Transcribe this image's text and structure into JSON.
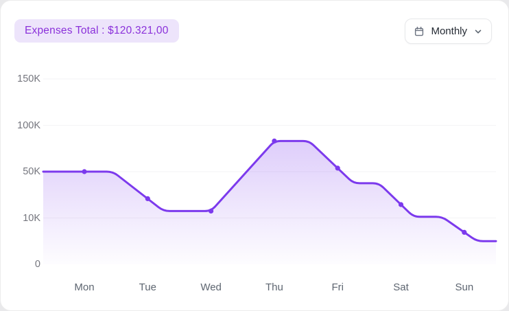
{
  "header": {
    "expenses_badge": "Expenses Total : $120.321,00",
    "period_dropdown": {
      "value": "Monthly",
      "icons": [
        "calendar-icon",
        "chevron-down-icon"
      ]
    }
  },
  "theme": {
    "accent": "#7C3AED",
    "badge_bg": "#EDE4FB",
    "badge_text": "#8A30DA",
    "grid_color": "#f3f3f5",
    "axis_text": "#74757d",
    "day_text": "#5d6570"
  },
  "chart_data": {
    "type": "area",
    "title": "",
    "xlabel": "",
    "ylabel": "",
    "categories": [
      "Mon",
      "Tue",
      "Wed",
      "Thu",
      "Fri",
      "Sat",
      "Sun"
    ],
    "values": [
      50000,
      26500,
      16000,
      83000,
      55000,
      21500,
      7200
    ],
    "y_ticks": {
      "labels": [
        "0",
        "10K",
        "50K",
        "100K",
        "150K"
      ],
      "values": [
        0,
        10000,
        50000,
        100000,
        150000
      ],
      "note": "ticks evenly spaced (non-linear value axis)"
    },
    "line_anchors_day_value": [
      [
        -0.65,
        50000
      ],
      [
        0.45,
        50000
      ],
      [
        1.25,
        16000
      ],
      [
        2.0,
        16000
      ],
      [
        3.0,
        83000
      ],
      [
        3.55,
        83000
      ],
      [
        4.25,
        40000
      ],
      [
        4.65,
        40000
      ],
      [
        5.2,
        11000
      ],
      [
        5.65,
        11000
      ],
      [
        6.2,
        5000
      ],
      [
        6.5,
        5000
      ]
    ],
    "grid": true,
    "legend": "none",
    "line_color": "#7C3AED",
    "area_gradient_top": "rgba(124,58,237,0.25)",
    "area_gradient_bottom": "rgba(124,58,237,0.01)"
  }
}
